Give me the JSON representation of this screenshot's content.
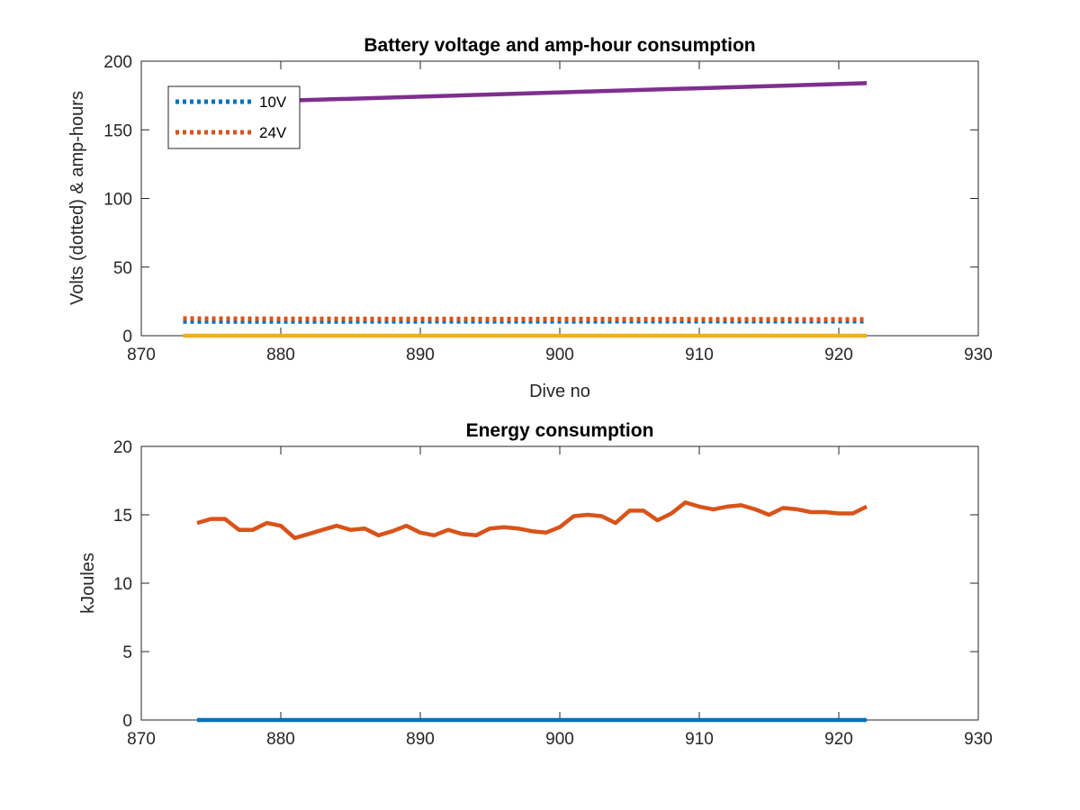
{
  "chart_data": [
    {
      "type": "line",
      "title": "Battery voltage and amp-hour consumption",
      "xlabel": "Dive no",
      "ylabel": "Volts (dotted) & amp-hours",
      "xlim": [
        870,
        930
      ],
      "ylim": [
        0,
        200
      ],
      "xticks": [
        870,
        880,
        890,
        900,
        910,
        920,
        930
      ],
      "yticks": [
        0,
        50,
        100,
        150,
        200
      ],
      "grid": false,
      "legend": {
        "placement": "top-left",
        "entries": [
          "10V",
          "24V"
        ]
      },
      "series": [
        {
          "name": "10V",
          "style": "dotted",
          "color": "#0072BD",
          "x": [
            873,
            880,
            890,
            900,
            910,
            922
          ],
          "y": [
            10.3,
            10.3,
            10.4,
            10.4,
            10.5,
            10.5
          ]
        },
        {
          "name": "24V",
          "style": "dotted",
          "color": "#D95319",
          "x": [
            873,
            880,
            890,
            900,
            910,
            922
          ],
          "y": [
            12.5,
            12.3,
            12.2,
            12.1,
            12.0,
            11.9
          ]
        },
        {
          "style": "solid",
          "color": "#7E2F8E",
          "x": [
            873,
            922
          ],
          "y": [
            169,
            184
          ]
        },
        {
          "style": "solid",
          "color": "#EDB120",
          "x": [
            873,
            922
          ],
          "y": [
            0,
            0
          ]
        }
      ]
    },
    {
      "type": "line",
      "title": "Energy consumption",
      "xlabel": "",
      "ylabel": "kJoules",
      "xlim": [
        870,
        930
      ],
      "ylim": [
        0,
        20
      ],
      "xticks": [
        870,
        880,
        890,
        900,
        910,
        920,
        930
      ],
      "yticks": [
        0,
        5,
        10,
        15,
        20
      ],
      "grid": false,
      "series": [
        {
          "style": "solid",
          "color": "#0072BD",
          "x": [
            874,
            922
          ],
          "y": [
            0,
            0
          ]
        },
        {
          "style": "solid",
          "color": "#D95319",
          "x": [
            874,
            875,
            876,
            877,
            878,
            879,
            880,
            881,
            882,
            883,
            884,
            885,
            886,
            887,
            888,
            889,
            890,
            891,
            892,
            893,
            894,
            895,
            896,
            897,
            898,
            899,
            900,
            901,
            902,
            903,
            904,
            905,
            906,
            907,
            908,
            909,
            910,
            911,
            912,
            913,
            914,
            915,
            916,
            917,
            918,
            919,
            920,
            921,
            922
          ],
          "y": [
            14.4,
            14.7,
            14.7,
            13.9,
            13.9,
            14.4,
            14.2,
            13.3,
            13.6,
            13.9,
            14.2,
            13.9,
            14.0,
            13.5,
            13.8,
            14.2,
            13.7,
            13.5,
            13.9,
            13.6,
            13.5,
            14.0,
            14.1,
            14.0,
            13.8,
            13.7,
            14.1,
            14.9,
            15.0,
            14.9,
            14.4,
            15.3,
            15.3,
            14.6,
            15.1,
            15.9,
            15.6,
            15.4,
            15.6,
            15.7,
            15.4,
            15.0,
            15.5,
            15.4,
            15.2,
            15.2,
            15.1,
            15.1,
            15.6
          ]
        }
      ]
    }
  ]
}
